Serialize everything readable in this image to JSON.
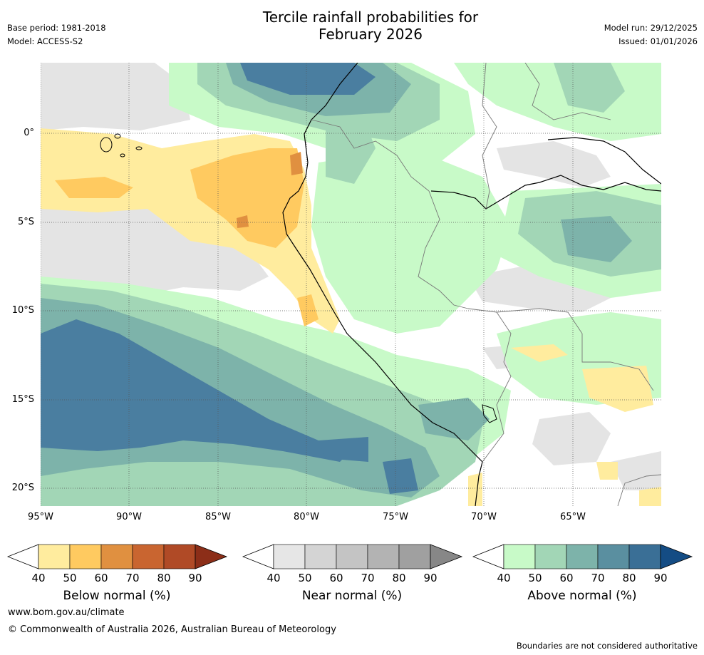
{
  "header": {
    "title_line1": "Tercile rainfall probabilities for",
    "title_line2": "February 2026",
    "base_period": "Base period: 1981-2018",
    "model": "Model: ACCESS-S2",
    "model_run": "Model run: 29/12/2025",
    "issued": "Issued: 01/01/2026"
  },
  "map": {
    "latitude_labels": [
      "0°",
      "5°S",
      "10°S",
      "15°S",
      "20°S"
    ],
    "longitude_labels": [
      "95°W",
      "90°W",
      "85°W",
      "80°W",
      "75°W",
      "70°W",
      "65°W"
    ]
  },
  "colorbars": [
    {
      "label": "Below normal (%)",
      "ticks": [
        "40",
        "50",
        "60",
        "70",
        "80",
        "90"
      ],
      "colors": [
        "#ffffff",
        "#ffec9e",
        "#ffca60",
        "#e09040",
        "#c96530",
        "#b04a26",
        "#8c2e18"
      ]
    },
    {
      "label": "Near normal (%)",
      "ticks": [
        "40",
        "50",
        "60",
        "70",
        "80",
        "90"
      ],
      "colors": [
        "#ffffff",
        "#e6e6e6",
        "#d4d4d4",
        "#c4c4c4",
        "#b3b3b3",
        "#a0a0a0",
        "#878787"
      ]
    },
    {
      "label": "Above normal (%)",
      "ticks": [
        "40",
        "50",
        "60",
        "70",
        "80",
        "90"
      ],
      "colors": [
        "#ffffff",
        "#c8fac8",
        "#a2d6b6",
        "#7db3aa",
        "#5a8fa0",
        "#3a6f96",
        "#144c84"
      ]
    }
  ],
  "footer": {
    "website": "www.bom.gov.au/climate",
    "copyright": "© Commonwealth of Australia 2026, Australian Bureau of Meteorology",
    "disclaimer": "Boundaries are not considered authoritative"
  }
}
